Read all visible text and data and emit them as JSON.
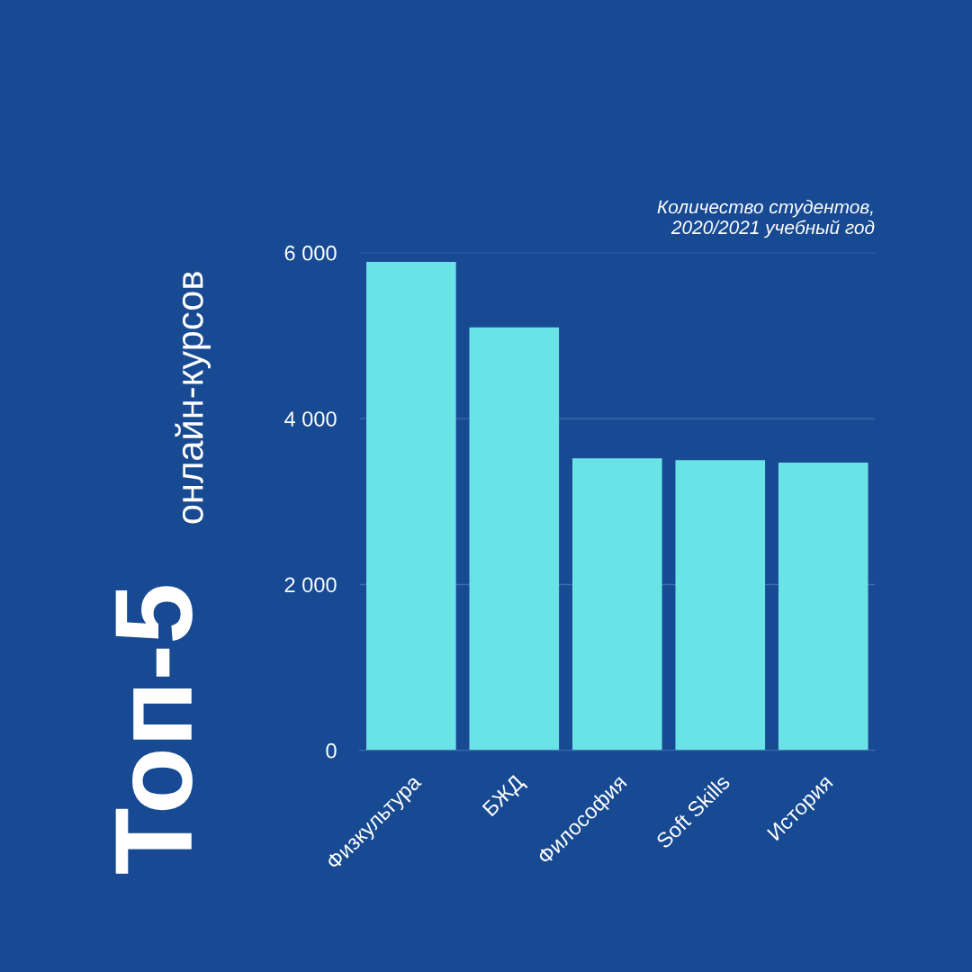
{
  "chart_data": {
    "type": "bar",
    "title": "Топ-5",
    "subtitle": "онлайн-курсов",
    "ylabel": "Количество студентов,\n2020/2021 учебный год",
    "categories": [
      "Физкультура",
      "БЖД",
      "Философия",
      "Soft Skills",
      "История"
    ],
    "values": [
      5890,
      5100,
      3520,
      3500,
      3470
    ],
    "color": "#6ae3e6",
    "ylim": [
      0,
      6000
    ],
    "yticks": [
      0,
      {
        "value": 2000,
        "label": "2 000"
      },
      {
        "value": 4000,
        "label": "4 000"
      },
      {
        "value": 6000,
        "label": "6 000"
      }
    ],
    "grid": "y"
  }
}
